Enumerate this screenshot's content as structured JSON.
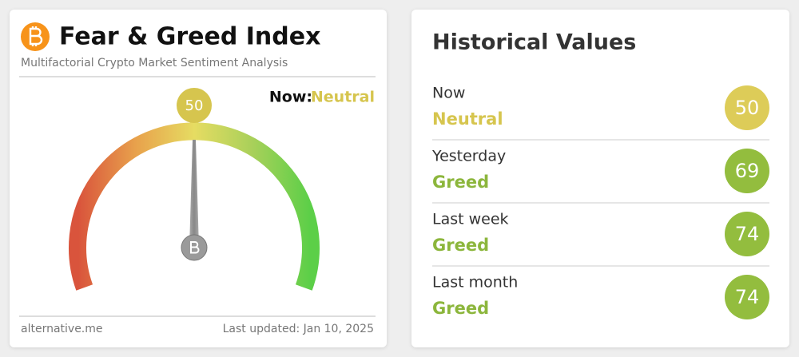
{
  "fear_greed": {
    "title": "Fear & Greed Index",
    "subtitle": "Multifactorial Crypto Market Sentiment Analysis",
    "now_label": "Now:",
    "classification": "Neutral",
    "classification_color": "#d6c54e",
    "value": 50,
    "range": [
      0,
      100
    ],
    "footer_source": "alternative.me",
    "footer_updated": "Last updated: Jan 10, 2025"
  },
  "historical": {
    "title": "Historical Values",
    "rows": [
      {
        "label": "Now",
        "classification": "Neutral",
        "value": 50,
        "color": "#ddcc58",
        "text_color": "#d6c54e"
      },
      {
        "label": "Yesterday",
        "classification": "Greed",
        "value": 69,
        "color": "#93bd3e",
        "text_color": "#8cb63c"
      },
      {
        "label": "Last week",
        "classification": "Greed",
        "value": 74,
        "color": "#93bd3e",
        "text_color": "#8cb63c"
      },
      {
        "label": "Last month",
        "classification": "Greed",
        "value": 74,
        "color": "#93bd3e",
        "text_color": "#8cb63c"
      }
    ]
  }
}
